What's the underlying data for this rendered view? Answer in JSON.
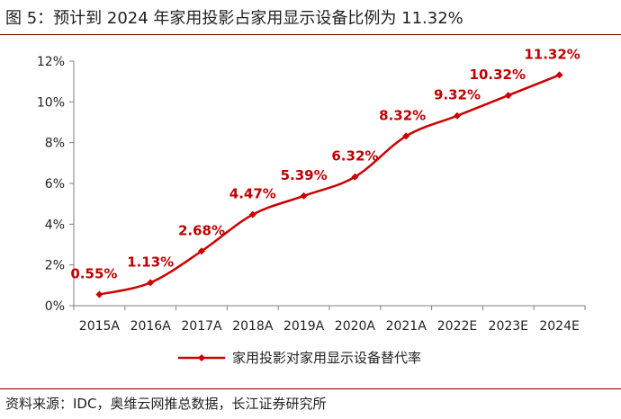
{
  "figure": {
    "title": "图 5：预计到 2024 年家用投影占家用显示设备比例为 11.32%",
    "source": "资料来源：IDC，奥维云网推总数据，长江证券研究所"
  },
  "colors": {
    "series": "#cc0000",
    "axis": "#808080",
    "rule": "#7a0000"
  },
  "chart_data": {
    "type": "line",
    "title": "",
    "xlabel": "",
    "ylabel": "",
    "ylim": [
      0,
      12
    ],
    "yticks": [
      "0%",
      "2%",
      "4%",
      "6%",
      "8%",
      "10%",
      "12%"
    ],
    "categories": [
      "2015A",
      "2016A",
      "2017A",
      "2018A",
      "2019A",
      "2020A",
      "2021A",
      "2022E",
      "2023E",
      "2024E"
    ],
    "series": [
      {
        "name": "家用投影对家用显示设备替代率",
        "values": [
          0.55,
          1.13,
          2.68,
          4.47,
          5.39,
          6.32,
          8.32,
          9.32,
          10.32,
          11.32
        ],
        "labels": [
          "0.55%",
          "1.13%",
          "2.68%",
          "4.47%",
          "5.39%",
          "6.32%",
          "8.32%",
          "9.32%",
          "10.32%",
          "11.32%"
        ]
      }
    ],
    "grid": false,
    "legend_position": "bottom-center"
  }
}
